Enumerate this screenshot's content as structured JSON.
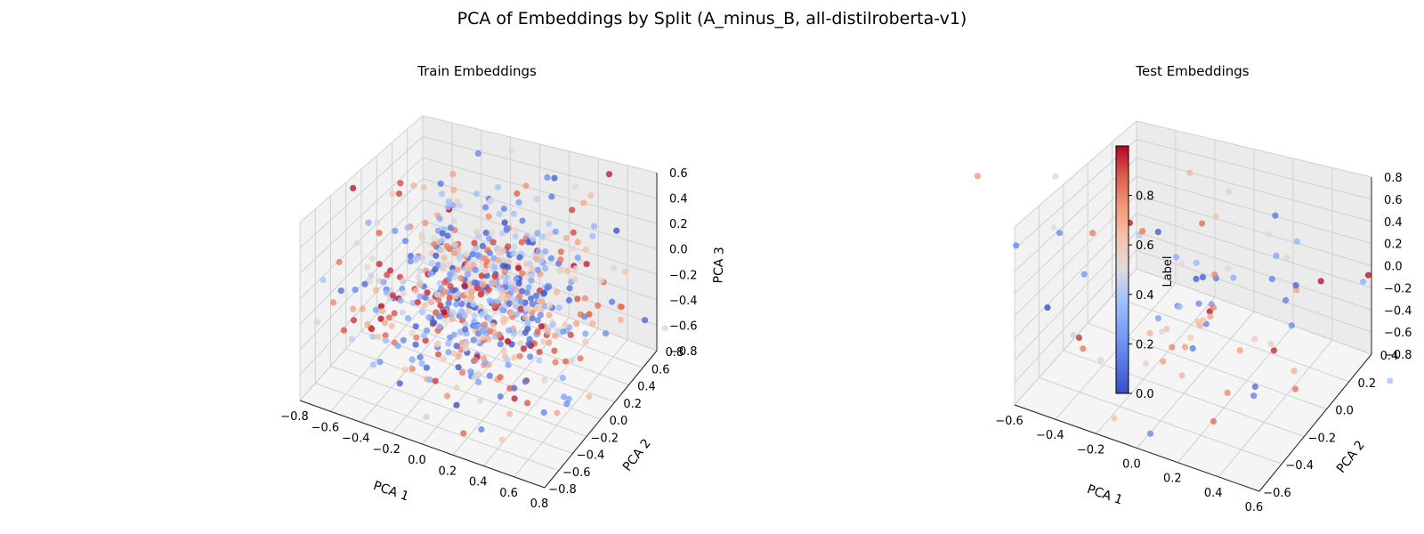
{
  "figure": {
    "title": "PCA of Embeddings by Split (A_minus_B, all-distilroberta-v1)"
  },
  "colormap": {
    "name": "coolwarm",
    "low": "#3b4cc0",
    "mid": "#dddddd",
    "high": "#b40426"
  },
  "chart_data": [
    {
      "type": "scatter",
      "projection": "3d",
      "title": "Train Embeddings",
      "xlabel": "PCA 1",
      "ylabel": "PCA 2",
      "zlabel": "PCA 3",
      "xlim": [
        -0.8,
        0.8
      ],
      "ylim": [
        -0.8,
        0.8
      ],
      "zlim": [
        -0.8,
        0.7
      ],
      "xticks": [
        "−0.8",
        "−0.6",
        "−0.4",
        "−0.2",
        "0.0",
        "0.2",
        "0.4",
        "0.6",
        "0.8"
      ],
      "yticks": [
        "−0.8",
        "−0.6",
        "−0.4",
        "−0.2",
        "0.0",
        "0.2",
        "0.4",
        "0.6",
        "0.8"
      ],
      "zticks": [
        "−0.8",
        "−0.6",
        "−0.4",
        "−0.2",
        "0.0",
        "0.2",
        "0.4",
        "0.6"
      ],
      "color_by": "Label",
      "grid": true,
      "num_points": 700,
      "seed": 11
    },
    {
      "type": "scatter",
      "projection": "3d",
      "title": "Test Embeddings",
      "xlabel": "PCA 1",
      "ylabel": "PCA 2",
      "zlabel": "",
      "xlim": [
        -0.6,
        0.6
      ],
      "ylim": [
        -0.6,
        0.4
      ],
      "zlim": [
        -0.8,
        0.8
      ],
      "xticks": [
        "−0.6",
        "−0.4",
        "−0.2",
        "0.0",
        "0.2",
        "0.4",
        "0.6"
      ],
      "yticks": [
        "−0.6",
        "−0.4",
        "−0.2",
        "0.0",
        "0.2",
        "0.4"
      ],
      "zticks": [
        "−0.8",
        "−0.6",
        "−0.4",
        "−0.2",
        "0.0",
        "0.2",
        "0.4",
        "0.6",
        "0.8"
      ],
      "color_by": "Label",
      "grid": true,
      "num_points": 80,
      "seed": 23
    }
  ],
  "colorbar": {
    "label": "Label",
    "range": [
      0.0,
      1.0
    ],
    "ticks": [
      "0.0",
      "0.2",
      "0.4",
      "0.6",
      "0.8"
    ]
  }
}
